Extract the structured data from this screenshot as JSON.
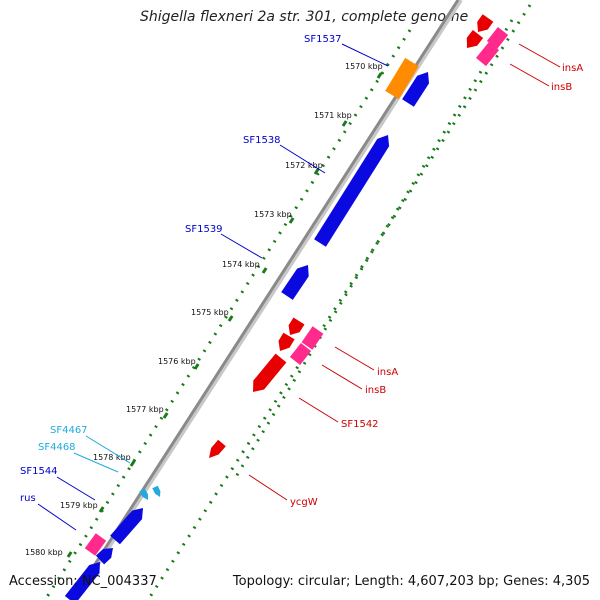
{
  "header": {
    "title": "Shigella flexneri 2a str. 301, complete genome"
  },
  "footer": {
    "accession": "Accession: NC_004337",
    "topology": "Topology: circular; Length: 4,607,203 bp; Genes: 4,305"
  },
  "map": {
    "backbone_color": "#8a8a8a",
    "tick_color": "#1a7a1a",
    "colors": {
      "forward_gene": "#0a0ae0",
      "reverse_gene": "#e80000",
      "insB": "#ff2a8c",
      "rRNA_like": "#ff8c00",
      "small_label": "#22aadd"
    },
    "scale_ticks": [
      {
        "label": "1570 kbp"
      },
      {
        "label": "1571 kbp"
      },
      {
        "label": "1572 kbp"
      },
      {
        "label": "1573 kbp"
      },
      {
        "label": "1574 kbp"
      },
      {
        "label": "1575 kbp"
      },
      {
        "label": "1576 kbp"
      },
      {
        "label": "1577 kbp"
      },
      {
        "label": "1578 kbp"
      },
      {
        "label": "1579 kbp"
      },
      {
        "label": "1580 kbp"
      }
    ],
    "gene_labels": [
      {
        "text": "SF1537",
        "color": "#0000cc"
      },
      {
        "text": "SF1538",
        "color": "#0000cc"
      },
      {
        "text": "SF1539",
        "color": "#0000cc"
      },
      {
        "text": "insA",
        "color": "#cc0000"
      },
      {
        "text": "insB",
        "color": "#cc0000"
      },
      {
        "text": "insA",
        "color": "#cc0000"
      },
      {
        "text": "insB",
        "color": "#cc0000"
      },
      {
        "text": "SF1542",
        "color": "#cc0000"
      },
      {
        "text": "ycgW",
        "color": "#cc0000"
      },
      {
        "text": "SF4467",
        "color": "#22aadd"
      },
      {
        "text": "SF4468",
        "color": "#22aadd"
      },
      {
        "text": "SF1544",
        "color": "#0000cc"
      },
      {
        "text": "rus",
        "color": "#0000cc"
      }
    ]
  }
}
